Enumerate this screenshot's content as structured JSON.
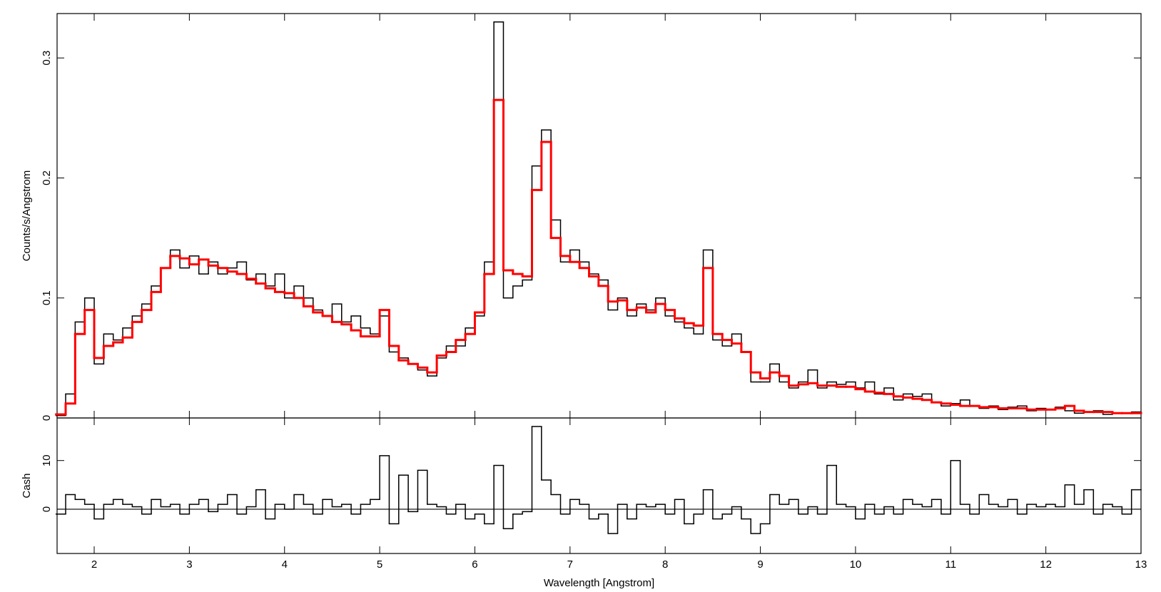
{
  "chart_data": [
    {
      "type": "line",
      "ylabel": "Counts/s/Angstrom",
      "xlim": [
        1.61,
        13
      ],
      "xticks": [
        2,
        3,
        4,
        5,
        6,
        7,
        8,
        9,
        10,
        11,
        12,
        13
      ],
      "ylim": [
        0,
        0.337
      ],
      "yticks": [
        0,
        0.1,
        0.2,
        0.3
      ],
      "x": [
        1.65,
        1.75,
        1.85,
        1.95,
        2.05,
        2.15,
        2.25,
        2.35,
        2.45,
        2.55,
        2.65,
        2.75,
        2.85,
        2.95,
        3.05,
        3.15,
        3.25,
        3.35,
        3.45,
        3.55,
        3.65,
        3.75,
        3.85,
        3.95,
        4.05,
        4.15,
        4.25,
        4.35,
        4.45,
        4.55,
        4.65,
        4.75,
        4.85,
        4.95,
        5.05,
        5.15,
        5.25,
        5.35,
        5.45,
        5.55,
        5.65,
        5.75,
        5.85,
        5.95,
        6.05,
        6.15,
        6.25,
        6.35,
        6.45,
        6.55,
        6.65,
        6.75,
        6.85,
        6.95,
        7.05,
        7.15,
        7.25,
        7.35,
        7.45,
        7.55,
        7.65,
        7.75,
        7.85,
        7.95,
        8.05,
        8.15,
        8.25,
        8.35,
        8.45,
        8.55,
        8.65,
        8.75,
        8.85,
        8.95,
        9.05,
        9.15,
        9.25,
        9.35,
        9.45,
        9.55,
        9.65,
        9.75,
        9.85,
        9.95,
        10.05,
        10.15,
        10.25,
        10.35,
        10.45,
        10.55,
        10.65,
        10.75,
        10.85,
        10.95,
        11.05,
        11.15,
        11.25,
        11.35,
        11.45,
        11.55,
        11.65,
        11.75,
        11.85,
        11.95,
        12.05,
        12.15,
        12.25,
        12.35,
        12.45,
        12.55,
        12.65,
        12.75,
        12.85,
        12.95
      ],
      "series": [
        {
          "color": "#000000",
          "values": [
            0.002,
            0.02,
            0.08,
            0.1,
            0.045,
            0.07,
            0.065,
            0.075,
            0.085,
            0.095,
            0.11,
            0.125,
            0.14,
            0.125,
            0.135,
            0.12,
            0.13,
            0.12,
            0.125,
            0.13,
            0.115,
            0.12,
            0.11,
            0.12,
            0.1,
            0.11,
            0.1,
            0.09,
            0.085,
            0.095,
            0.08,
            0.085,
            0.075,
            0.07,
            0.085,
            0.055,
            0.05,
            0.045,
            0.04,
            0.035,
            0.05,
            0.06,
            0.06,
            0.075,
            0.085,
            0.13,
            0.33,
            0.1,
            0.11,
            0.115,
            0.21,
            0.24,
            0.165,
            0.13,
            0.14,
            0.13,
            0.12,
            0.115,
            0.09,
            0.1,
            0.085,
            0.095,
            0.09,
            0.1,
            0.085,
            0.08,
            0.075,
            0.07,
            0.14,
            0.065,
            0.06,
            0.07,
            0.055,
            0.03,
            0.03,
            0.045,
            0.03,
            0.025,
            0.03,
            0.04,
            0.025,
            0.03,
            0.028,
            0.03,
            0.025,
            0.03,
            0.02,
            0.025,
            0.015,
            0.02,
            0.018,
            0.02,
            0.013,
            0.01,
            0.012,
            0.015,
            0.01,
            0.008,
            0.01,
            0.007,
            0.009,
            0.01,
            0.006,
            0.008,
            0.007,
            0.009,
            0.006,
            0.004,
            0.005,
            0.006,
            0.003,
            0.004,
            0.004,
            0.005
          ]
        },
        {
          "color": "#ff0000",
          "values": [
            0.003,
            0.012,
            0.07,
            0.09,
            0.05,
            0.06,
            0.063,
            0.067,
            0.08,
            0.09,
            0.105,
            0.125,
            0.135,
            0.133,
            0.128,
            0.132,
            0.127,
            0.125,
            0.122,
            0.12,
            0.116,
            0.112,
            0.108,
            0.105,
            0.104,
            0.1,
            0.093,
            0.088,
            0.085,
            0.08,
            0.078,
            0.073,
            0.068,
            0.068,
            0.09,
            0.06,
            0.048,
            0.045,
            0.042,
            0.038,
            0.052,
            0.055,
            0.065,
            0.07,
            0.088,
            0.12,
            0.265,
            0.123,
            0.12,
            0.118,
            0.19,
            0.23,
            0.15,
            0.135,
            0.13,
            0.125,
            0.118,
            0.11,
            0.097,
            0.098,
            0.09,
            0.092,
            0.088,
            0.095,
            0.09,
            0.083,
            0.079,
            0.077,
            0.125,
            0.07,
            0.065,
            0.062,
            0.055,
            0.038,
            0.033,
            0.038,
            0.035,
            0.027,
            0.028,
            0.029,
            0.027,
            0.027,
            0.026,
            0.026,
            0.024,
            0.022,
            0.021,
            0.02,
            0.018,
            0.017,
            0.016,
            0.015,
            0.013,
            0.012,
            0.011,
            0.01,
            0.01,
            0.009,
            0.009,
            0.008,
            0.008,
            0.008,
            0.007,
            0.007,
            0.007,
            0.008,
            0.01,
            0.006,
            0.005,
            0.005,
            0.005,
            0.004,
            0.004,
            0.004
          ]
        }
      ]
    },
    {
      "type": "line",
      "ylabel": "Cash",
      "xlabel": "Wavelength [Angstrom]",
      "xlim": [
        1.61,
        13
      ],
      "xticks": [
        2,
        3,
        4,
        5,
        6,
        7,
        8,
        9,
        10,
        11,
        12,
        13
      ],
      "ylim": [
        -9.1,
        18.75
      ],
      "yticks": [
        0,
        10
      ],
      "x": [
        1.65,
        1.75,
        1.85,
        1.95,
        2.05,
        2.15,
        2.25,
        2.35,
        2.45,
        2.55,
        2.65,
        2.75,
        2.85,
        2.95,
        3.05,
        3.15,
        3.25,
        3.35,
        3.45,
        3.55,
        3.65,
        3.75,
        3.85,
        3.95,
        4.05,
        4.15,
        4.25,
        4.35,
        4.45,
        4.55,
        4.65,
        4.75,
        4.85,
        4.95,
        5.05,
        5.15,
        5.25,
        5.35,
        5.45,
        5.55,
        5.65,
        5.75,
        5.85,
        5.95,
        6.05,
        6.15,
        6.25,
        6.35,
        6.45,
        6.55,
        6.65,
        6.75,
        6.85,
        6.95,
        7.05,
        7.15,
        7.25,
        7.35,
        7.45,
        7.55,
        7.65,
        7.75,
        7.85,
        7.95,
        8.05,
        8.15,
        8.25,
        8.35,
        8.45,
        8.55,
        8.65,
        8.75,
        8.85,
        8.95,
        9.05,
        9.15,
        9.25,
        9.35,
        9.45,
        9.55,
        9.65,
        9.75,
        9.85,
        9.95,
        10.05,
        10.15,
        10.25,
        10.35,
        10.45,
        10.55,
        10.65,
        10.75,
        10.85,
        10.95,
        11.05,
        11.15,
        11.25,
        11.35,
        11.45,
        11.55,
        11.65,
        11.75,
        11.85,
        11.95,
        12.05,
        12.15,
        12.25,
        12.35,
        12.45,
        12.55,
        12.65,
        12.75,
        12.85,
        12.95
      ],
      "series": [
        {
          "color": "#000000",
          "values": [
            -1,
            3,
            2,
            1,
            -2,
            1,
            2,
            1,
            0.5,
            -1,
            2,
            0.5,
            1,
            -1,
            1,
            2,
            -0.5,
            1,
            3,
            -1,
            0.5,
            4,
            -2,
            1,
            0,
            3,
            1,
            -1,
            2,
            0.5,
            1,
            -1,
            1,
            2,
            11,
            -3,
            7,
            -0.5,
            8,
            1,
            0.5,
            -1,
            1,
            -2,
            -1,
            -3,
            9,
            -4,
            -1,
            -0.5,
            17,
            6,
            3,
            -1,
            2,
            1,
            -2,
            -1,
            -5,
            1,
            -2,
            1,
            0.5,
            1,
            -1,
            2,
            -3,
            -1,
            4,
            -2,
            -1,
            0.5,
            -2,
            -5,
            -3,
            3,
            1,
            2,
            -1,
            0.5,
            -1,
            9,
            1,
            0.5,
            -2,
            1,
            -1,
            0.5,
            -1,
            2,
            1,
            0.5,
            2,
            -1,
            10,
            1,
            -1,
            3,
            1,
            0.5,
            2,
            -1,
            1,
            0.5,
            1,
            0.5,
            5,
            1,
            4,
            -1,
            1,
            0.5,
            -1,
            4
          ]
        }
      ]
    }
  ]
}
